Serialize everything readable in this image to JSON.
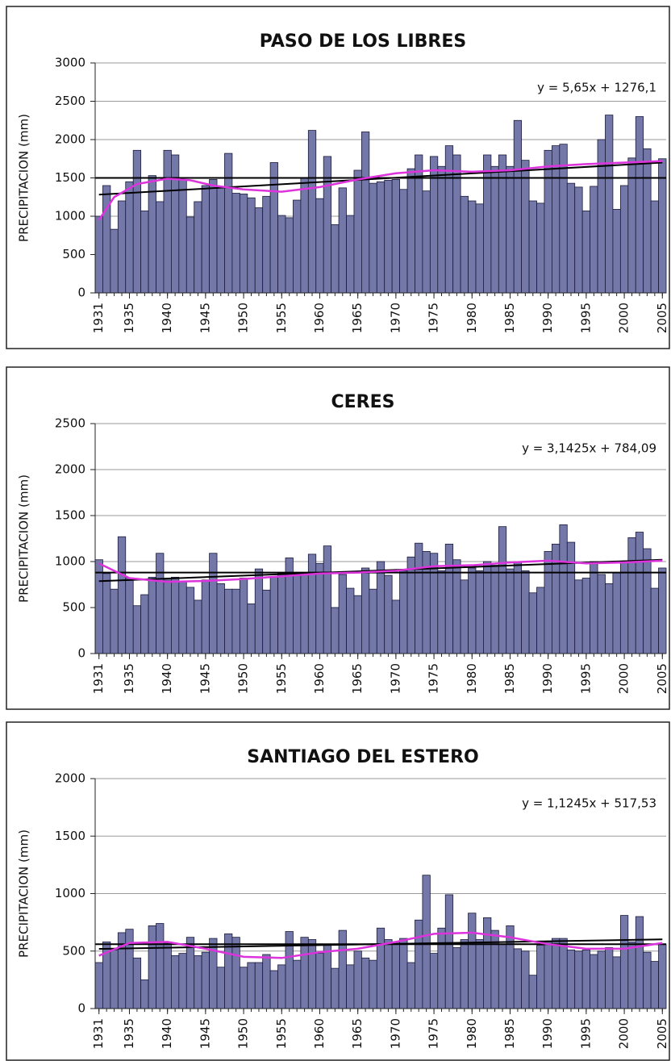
{
  "chart_data": [
    {
      "type": "bar",
      "title": "PASO DE LOS LIBRES",
      "y_label": "PRECIPITACION (mm)",
      "annotation": "y = 5,65x + 1276,1",
      "x": [
        1931,
        1932,
        1933,
        1934,
        1935,
        1936,
        1937,
        1938,
        1939,
        1940,
        1941,
        1942,
        1943,
        1944,
        1945,
        1946,
        1947,
        1948,
        1949,
        1950,
        1951,
        1952,
        1953,
        1954,
        1955,
        1956,
        1957,
        1958,
        1959,
        1960,
        1961,
        1962,
        1963,
        1964,
        1965,
        1966,
        1967,
        1968,
        1969,
        1970,
        1971,
        1972,
        1973,
        1974,
        1975,
        1976,
        1977,
        1978,
        1979,
        1980,
        1981,
        1982,
        1983,
        1984,
        1985,
        1986,
        1987,
        1988,
        1989,
        1990,
        1991,
        1992,
        1993,
        1994,
        1995,
        1996,
        1997,
        1998,
        1999,
        2000,
        2001,
        2002,
        2003,
        2004,
        2005
      ],
      "values": [
        1000,
        1400,
        830,
        1200,
        1450,
        1860,
        1070,
        1530,
        1190,
        1860,
        1800,
        1480,
        990,
        1190,
        1400,
        1480,
        1380,
        1820,
        1300,
        1290,
        1240,
        1110,
        1260,
        1700,
        1010,
        980,
        1210,
        1500,
        2120,
        1230,
        1780,
        890,
        1370,
        1010,
        1600,
        2100,
        1430,
        1450,
        1470,
        1480,
        1350,
        1620,
        1800,
        1330,
        1780,
        1650,
        1920,
        1800,
        1260,
        1200,
        1160,
        1800,
        1650,
        1800,
        1650,
        2250,
        1730,
        1200,
        1170,
        1860,
        1920,
        1940,
        1430,
        1380,
        1070,
        1390,
        2000,
        2320,
        1090,
        1400,
        1760,
        2300,
        1880,
        1200,
        1750
      ],
      "color": "#7478a8",
      "mean": 1500,
      "trend": {
        "x": [
          1931,
          2005
        ],
        "values": [
          1282,
          1700
        ]
      },
      "smooth": {
        "x": [
          1931,
          1933,
          1936,
          1940,
          1943,
          1946,
          1950,
          1955,
          1960,
          1965,
          1970,
          1975,
          1980,
          1985,
          1990,
          1995,
          2000,
          2005
        ],
        "values": [
          950,
          1250,
          1420,
          1490,
          1470,
          1400,
          1350,
          1320,
          1380,
          1480,
          1560,
          1600,
          1580,
          1600,
          1650,
          1680,
          1700,
          1720
        ],
        "color": "#dd33dd"
      },
      "xlim": [
        1930.5,
        2005.5
      ],
      "xticks": [
        1931,
        1935,
        1940,
        1945,
        1950,
        1955,
        1960,
        1965,
        1970,
        1975,
        1980,
        1985,
        1990,
        1995,
        2000,
        2005
      ],
      "ylim": [
        0,
        3000
      ],
      "yticks": [
        0,
        500,
        1000,
        1500,
        2000,
        2500,
        3000
      ],
      "grid": true
    },
    {
      "type": "bar",
      "title": "CERES",
      "y_label": "PRECIPITACION (mm)",
      "annotation": "y = 3,1425x + 784,09",
      "x": [
        1931,
        1932,
        1933,
        1934,
        1935,
        1936,
        1937,
        1938,
        1939,
        1940,
        1941,
        1942,
        1943,
        1944,
        1945,
        1946,
        1947,
        1948,
        1949,
        1950,
        1951,
        1952,
        1953,
        1954,
        1955,
        1956,
        1957,
        1958,
        1959,
        1960,
        1961,
        1962,
        1963,
        1964,
        1965,
        1966,
        1967,
        1968,
        1969,
        1970,
        1971,
        1972,
        1973,
        1974,
        1975,
        1976,
        1977,
        1978,
        1979,
        1980,
        1981,
        1982,
        1983,
        1984,
        1985,
        1986,
        1987,
        1988,
        1989,
        1990,
        1991,
        1992,
        1993,
        1994,
        1995,
        1996,
        1997,
        1998,
        1999,
        2000,
        2001,
        2002,
        2003,
        2004,
        2005
      ],
      "values": [
        1020,
        870,
        700,
        1270,
        820,
        520,
        640,
        830,
        1090,
        800,
        830,
        780,
        720,
        580,
        800,
        1090,
        760,
        700,
        700,
        820,
        540,
        920,
        690,
        830,
        870,
        1040,
        870,
        870,
        1080,
        980,
        1170,
        500,
        860,
        710,
        630,
        930,
        700,
        1000,
        850,
        580,
        900,
        1050,
        1200,
        1110,
        1090,
        900,
        1190,
        1020,
        800,
        930,
        900,
        1000,
        960,
        1380,
        920,
        1000,
        900,
        660,
        720,
        1110,
        1190,
        1400,
        1210,
        800,
        820,
        1000,
        860,
        760,
        880,
        1000,
        1260,
        1320,
        1140,
        710,
        930
      ],
      "color": "#7478a8",
      "mean": 880,
      "trend": {
        "x": [
          1931,
          2005
        ],
        "values": [
          787,
          1020
        ]
      },
      "smooth": {
        "x": [
          1931,
          1935,
          1940,
          1945,
          1950,
          1955,
          1960,
          1965,
          1970,
          1975,
          1980,
          1985,
          1990,
          1995,
          2000,
          2005
        ],
        "values": [
          980,
          820,
          780,
          790,
          810,
          840,
          870,
          880,
          900,
          950,
          960,
          990,
          1010,
          980,
          990,
          1010
        ],
        "color": "#dd33dd"
      },
      "xlim": [
        1930.5,
        2005.5
      ],
      "xticks": [
        1931,
        1935,
        1940,
        1945,
        1950,
        1955,
        1960,
        1965,
        1970,
        1975,
        1980,
        1985,
        1990,
        1995,
        2000,
        2005
      ],
      "ylim": [
        0,
        2500
      ],
      "yticks": [
        0,
        500,
        1000,
        1500,
        2000,
        2500
      ],
      "grid": true
    },
    {
      "type": "bar",
      "title": "SANTIAGO DEL ESTERO",
      "y_label": "PRECIPITACION (mm)",
      "annotation": "y = 1,1245x + 517,53",
      "x": [
        1931,
        1932,
        1933,
        1934,
        1935,
        1936,
        1937,
        1938,
        1939,
        1940,
        1941,
        1942,
        1943,
        1944,
        1945,
        1946,
        1947,
        1948,
        1949,
        1950,
        1951,
        1952,
        1953,
        1954,
        1955,
        1956,
        1957,
        1958,
        1959,
        1960,
        1961,
        1962,
        1963,
        1964,
        1965,
        1966,
        1967,
        1968,
        1969,
        1970,
        1971,
        1972,
        1973,
        1974,
        1975,
        1976,
        1977,
        1978,
        1979,
        1980,
        1981,
        1982,
        1983,
        1984,
        1985,
        1986,
        1987,
        1988,
        1989,
        1990,
        1991,
        1992,
        1993,
        1994,
        1995,
        1996,
        1997,
        1998,
        1999,
        2000,
        2001,
        2002,
        2003,
        2004,
        2005
      ],
      "values": [
        400,
        580,
        510,
        660,
        690,
        440,
        250,
        720,
        740,
        570,
        460,
        480,
        620,
        460,
        490,
        610,
        360,
        650,
        620,
        360,
        400,
        400,
        470,
        330,
        380,
        670,
        420,
        620,
        600,
        480,
        560,
        350,
        680,
        380,
        500,
        440,
        420,
        700,
        600,
        580,
        610,
        400,
        770,
        1160,
        480,
        700,
        990,
        530,
        600,
        830,
        600,
        790,
        680,
        560,
        720,
        520,
        500,
        290,
        550,
        580,
        610,
        610,
        510,
        500,
        510,
        470,
        500,
        530,
        450,
        810,
        580,
        800,
        490,
        410,
        560
      ],
      "color": "#7478a8",
      "mean": 560,
      "trend": {
        "x": [
          1931,
          2005
        ],
        "values": [
          519,
          602
        ]
      },
      "smooth": {
        "x": [
          1931,
          1935,
          1940,
          1945,
          1950,
          1955,
          1960,
          1965,
          1970,
          1975,
          1980,
          1985,
          1990,
          1995,
          2000,
          2005
        ],
        "values": [
          460,
          570,
          580,
          520,
          450,
          440,
          490,
          520,
          580,
          650,
          660,
          620,
          560,
          520,
          520,
          570
        ],
        "color": "#dd33dd"
      },
      "xlim": [
        1930.5,
        2005.5
      ],
      "xticks": [
        1931,
        1935,
        1940,
        1945,
        1950,
        1955,
        1960,
        1965,
        1970,
        1975,
        1980,
        1985,
        1990,
        1995,
        2000,
        2005
      ],
      "ylim": [
        0,
        2000
      ],
      "yticks": [
        0,
        500,
        1000,
        1500,
        2000
      ],
      "grid": true
    }
  ]
}
